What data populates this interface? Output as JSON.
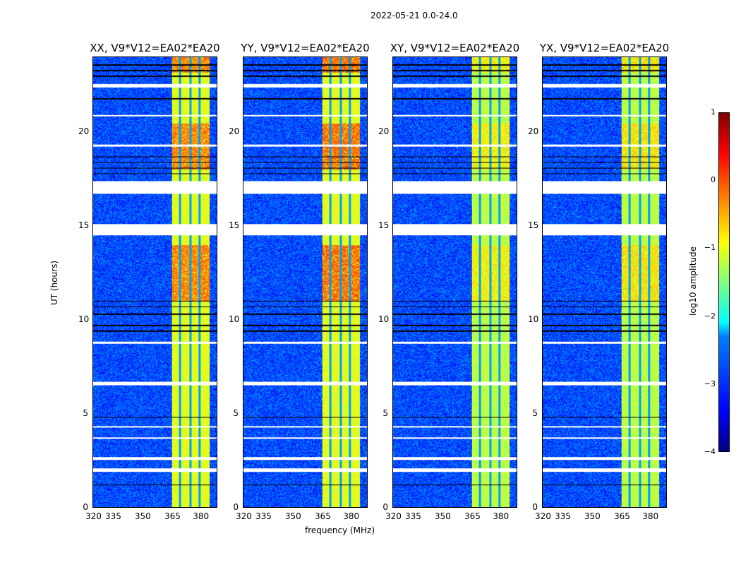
{
  "chart_data": {
    "type": "heatmap",
    "title": "2022-05-21 0.0-24.0",
    "xlabel": "frequency (MHz)",
    "ylabel": "UT (hours)",
    "xticks": [
      "320",
      "335",
      "350",
      "365",
      "380"
    ],
    "yticks": [
      "0",
      "5",
      "10",
      "15",
      "20"
    ],
    "ylim": [
      0,
      24
    ],
    "panels": [
      {
        "title": "XX, V9*V12=EA02*EA20",
        "band_level": -1.0,
        "hot_level": -0.2
      },
      {
        "title": "YY, V9*V12=EA02*EA20",
        "band_level": -1.0,
        "hot_level": -0.1
      },
      {
        "title": "XY, V9*V12=EA02*EA20",
        "band_level": -1.2,
        "hot_level": -0.8
      },
      {
        "title": "YX, V9*V12=EA02*EA20",
        "band_level": -1.2,
        "hot_level": -0.7
      }
    ],
    "background_level": -3.0,
    "flagged_hours": [
      [
        22.4,
        22.6
      ],
      [
        20.85,
        20.95
      ],
      [
        19.25,
        19.35
      ],
      [
        16.75,
        17.4
      ],
      [
        14.5,
        15.1
      ],
      [
        8.75,
        8.85
      ],
      [
        6.5,
        6.7
      ],
      [
        4.25,
        4.35
      ],
      [
        3.65,
        3.75
      ],
      [
        2.55,
        2.7
      ],
      [
        1.9,
        2.1
      ]
    ],
    "dark_rows_hours": [
      23.6,
      23.3,
      23.0,
      21.8,
      18.7,
      18.4,
      18.1,
      17.8,
      11.0,
      10.7,
      10.3,
      9.7,
      9.4,
      4.8,
      1.2
    ],
    "hot_hours": [
      [
        11,
        14
      ],
      [
        18,
        20.5
      ],
      [
        23.2,
        24
      ]
    ],
    "colorbar": {
      "label": "log10 amplitude",
      "ticks": [
        "1",
        "0",
        "−1",
        "−2",
        "−3",
        "−4"
      ],
      "range": [
        -4,
        1
      ]
    }
  }
}
